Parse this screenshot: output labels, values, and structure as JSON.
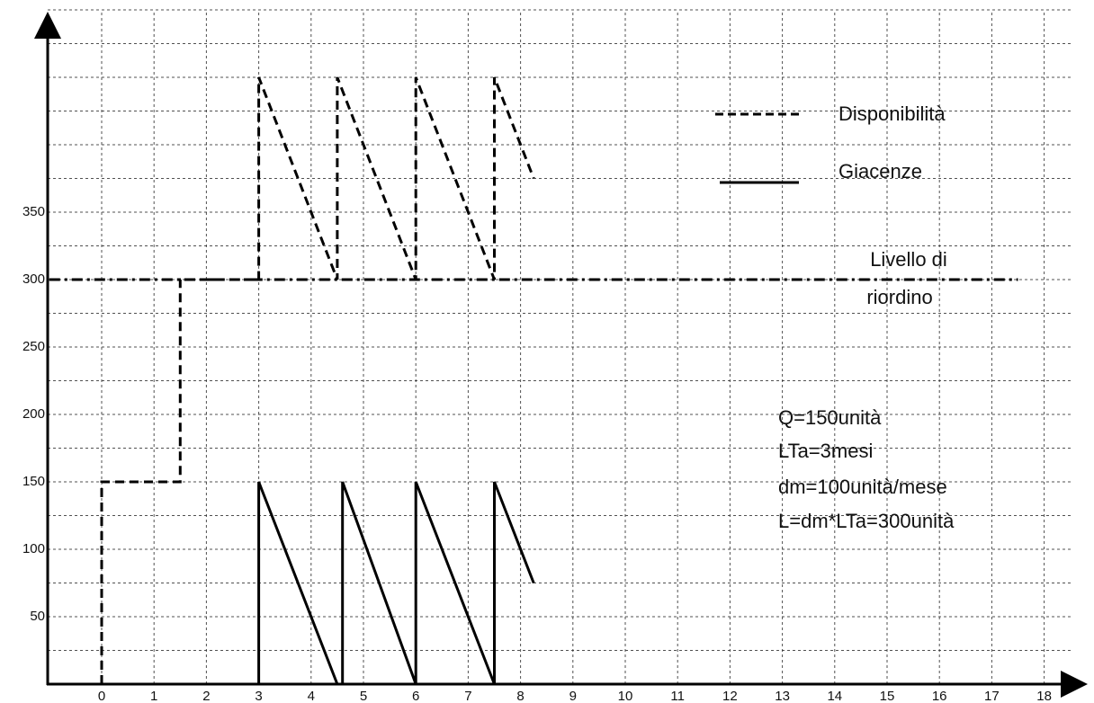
{
  "chart_data": {
    "type": "line",
    "title": "",
    "xlabel": "",
    "ylabel": "",
    "xlim": [
      -1,
      19
    ],
    "ylim": [
      0,
      500
    ],
    "grid": true,
    "x_ticks": [
      0,
      1,
      2,
      3,
      4,
      5,
      6,
      7,
      8,
      9,
      10,
      11,
      12,
      13,
      14,
      15,
      16,
      17,
      18
    ],
    "y_ticks": [
      50,
      100,
      150,
      200,
      250,
      300,
      350
    ],
    "legend_position": "top-right",
    "series": [
      {
        "name": "Disponibilità",
        "style": "dashed",
        "color": "#000000",
        "points": [
          [
            0,
            0
          ],
          [
            0,
            150
          ],
          [
            1.5,
            150
          ],
          [
            1.5,
            300
          ],
          [
            3,
            300
          ],
          [
            3,
            450
          ],
          [
            4.5,
            300
          ],
          [
            4.5,
            450
          ],
          [
            6,
            300
          ],
          [
            6,
            450
          ],
          [
            7.5,
            300
          ],
          [
            7.5,
            450
          ],
          [
            8.25,
            375
          ]
        ]
      },
      {
        "name": "Giacenze",
        "style": "solid",
        "color": "#000000",
        "points": [
          [
            3,
            0
          ],
          [
            3,
            150
          ],
          [
            4.5,
            0
          ],
          [
            4.6,
            0
          ],
          [
            4.6,
            150
          ],
          [
            6,
            0
          ],
          [
            6,
            150
          ],
          [
            7.5,
            0
          ],
          [
            7.5,
            150
          ],
          [
            8.25,
            75
          ]
        ]
      },
      {
        "name": "Livello di riordino",
        "style": "dashdot",
        "color": "#000000",
        "points": [
          [
            -1,
            300
          ],
          [
            17.5,
            300
          ]
        ]
      }
    ],
    "legend": [
      {
        "series": "Disponibilità",
        "label": "Disponibilità"
      },
      {
        "series": "Giacenze",
        "label": "Giacenze"
      }
    ],
    "annotations": {
      "reorder_label": [
        "Livello di",
        "riordino"
      ],
      "params": [
        "Q=150unità",
        "LTa=3mesi",
        "dm=100unità/mese",
        "L=dm*LTa=300unità"
      ]
    }
  }
}
